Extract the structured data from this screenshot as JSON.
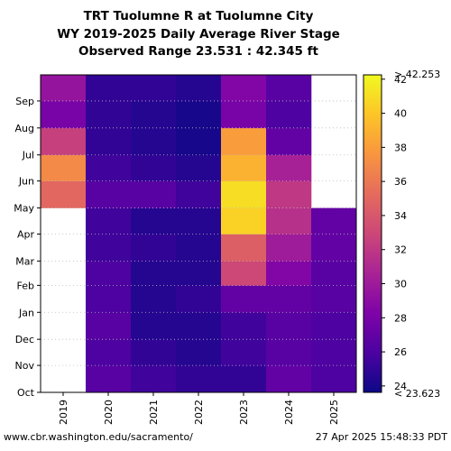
{
  "chart_data": {
    "type": "heatmap",
    "title_lines": [
      "TRT Tuolumne R at Tuolumne City",
      "WY 2019-2025 Daily Average River Stage",
      "Observed Range 23.531 : 42.345 ft"
    ],
    "xlabel": "",
    "ylabel": "",
    "x_categories": [
      "2019",
      "2020",
      "2021",
      "2022",
      "2023",
      "2024",
      "2025"
    ],
    "y_tick_labels": [
      "Oct",
      "Nov",
      "Dec",
      "Jan",
      "Feb",
      "Mar",
      "Apr",
      "May",
      "Jun",
      "Jul",
      "Aug",
      "Sep"
    ],
    "colorbar": {
      "min": 23.623,
      "max": 42.253,
      "ticks": [
        24,
        26,
        28,
        30,
        32,
        34,
        36,
        38,
        40,
        42
      ],
      "top_label": "> 42.253",
      "bottom_label": "< 23.623",
      "colormap": "plasma"
    },
    "series": [
      {
        "year": "2019",
        "missing_before_month": 7,
        "stage_by_month": [
          null,
          null,
          null,
          null,
          null,
          null,
          null,
          35.0,
          37.0,
          32.5,
          28.0,
          29.5
        ]
      },
      {
        "year": "2020",
        "stage_by_month": [
          26.5,
          26.0,
          26.5,
          26.0,
          26.0,
          25.5,
          25.5,
          26.5,
          25.5,
          25.0,
          25.0,
          25.0
        ]
      },
      {
        "year": "2021",
        "stage_by_month": [
          25.5,
          25.0,
          24.5,
          24.5,
          24.5,
          25.0,
          24.5,
          26.5,
          25.0,
          24.5,
          24.5,
          25.0
        ]
      },
      {
        "year": "2022",
        "stage_by_month": [
          25.0,
          24.5,
          24.5,
          25.0,
          24.5,
          24.5,
          24.5,
          25.5,
          24.5,
          24.0,
          24.0,
          24.5
        ]
      },
      {
        "year": "2023",
        "stage_by_month": [
          25.0,
          25.5,
          25.5,
          27.0,
          33.0,
          34.5,
          40.5,
          41.0,
          39.0,
          38.0,
          28.0,
          28.5
        ]
      },
      {
        "year": "2024",
        "stage_by_month": [
          27.0,
          26.5,
          26.5,
          27.0,
          28.5,
          30.0,
          31.5,
          32.0,
          30.5,
          27.0,
          26.0,
          26.5
        ]
      },
      {
        "year": "2025",
        "missing_after_month": 7,
        "stage_by_month": [
          26.0,
          26.0,
          26.0,
          26.5,
          26.5,
          27.0,
          27.0,
          null,
          null,
          null,
          null,
          null
        ]
      }
    ]
  },
  "footer": {
    "url": "www.cbr.washington.edu/sacramento/",
    "timestamp": "27 Apr 2025 15:48:33 PDT"
  }
}
